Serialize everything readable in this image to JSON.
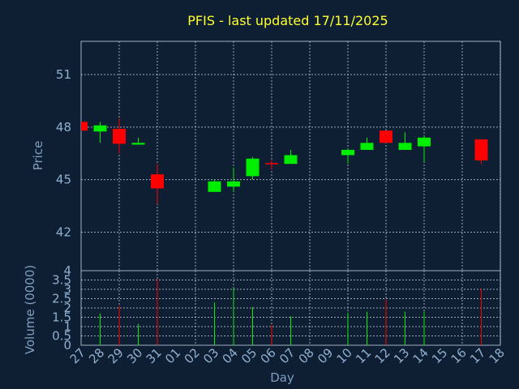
{
  "chart_data": [
    {
      "type": "candlestick",
      "title": "PFIS - last updated 17/11/2025",
      "xlabel": "",
      "ylabel": "Price",
      "ylim": [
        39.8,
        52.9
      ],
      "yticks": [
        42,
        45,
        48,
        51
      ],
      "grid": true,
      "colors": {
        "up": "#00ee00",
        "down": "#ff0000"
      },
      "x": [
        "27",
        "28",
        "29",
        "30",
        "31",
        "01",
        "02",
        "03",
        "04",
        "05",
        "06",
        "07",
        "08",
        "09",
        "10",
        "11",
        "12",
        "13",
        "14",
        "15",
        "16",
        "17",
        "18"
      ],
      "candles": [
        {
          "day": "27",
          "open": 48.3,
          "close": 47.8,
          "high": 48.3,
          "low": 47.8
        },
        {
          "day": "28",
          "open": 47.75,
          "close": 48.1,
          "high": 48.3,
          "low": 47.1
        },
        {
          "day": "29",
          "open": 47.9,
          "close": 47.05,
          "high": 48.5,
          "low": 46.5
        },
        {
          "day": "30",
          "open": 47.0,
          "close": 47.1,
          "high": 47.4,
          "low": 47.0
        },
        {
          "day": "31",
          "open": 45.3,
          "close": 44.5,
          "high": 45.9,
          "low": 43.6
        },
        {
          "day": "03",
          "open": 44.3,
          "close": 44.9,
          "high": 45.0,
          "low": 44.3
        },
        {
          "day": "04",
          "open": 44.6,
          "close": 44.9,
          "high": 45.7,
          "low": 44.3
        },
        {
          "day": "05",
          "open": 45.2,
          "close": 46.2,
          "high": 46.3,
          "low": 45.0
        },
        {
          "day": "06",
          "open": 45.95,
          "close": 45.9,
          "high": 46.1,
          "low": 45.6
        },
        {
          "day": "07",
          "open": 45.9,
          "close": 46.4,
          "high": 46.7,
          "low": 45.9
        },
        {
          "day": "10",
          "open": 46.4,
          "close": 46.7,
          "high": 46.8,
          "low": 45.9
        },
        {
          "day": "11",
          "open": 46.7,
          "close": 47.1,
          "high": 47.4,
          "low": 46.7
        },
        {
          "day": "12",
          "open": 47.8,
          "close": 47.1,
          "high": 47.8,
          "low": 47.1
        },
        {
          "day": "13",
          "open": 46.7,
          "close": 47.1,
          "high": 47.7,
          "low": 46.7
        },
        {
          "day": "14",
          "open": 46.9,
          "close": 47.4,
          "high": 47.5,
          "low": 46.0
        },
        {
          "day": "17",
          "open": 47.3,
          "close": 46.1,
          "high": 47.3,
          "low": 45.9
        }
      ]
    },
    {
      "type": "bar",
      "title": "",
      "xlabel": "Day",
      "ylabel": "Volume (0000)",
      "ylim": [
        0,
        4
      ],
      "yticks": [
        0,
        0.5,
        1,
        1.5,
        2,
        2.5,
        3,
        3.5,
        4
      ],
      "yticklabels": [
        "0",
        "0.5",
        "1",
        "1.5",
        "2",
        "2.5",
        "3",
        "3.5",
        "4"
      ],
      "grid": true,
      "x": [
        "27",
        "28",
        "29",
        "30",
        "31",
        "01",
        "02",
        "03",
        "04",
        "05",
        "06",
        "07",
        "08",
        "09",
        "10",
        "11",
        "12",
        "13",
        "14",
        "15",
        "16",
        "17",
        "18"
      ],
      "bars": [
        {
          "day": "28",
          "value": 1.7,
          "dir": "up"
        },
        {
          "day": "29",
          "value": 2.1,
          "dir": "down"
        },
        {
          "day": "30",
          "value": 1.15,
          "dir": "up"
        },
        {
          "day": "31",
          "value": 3.55,
          "dir": "down"
        },
        {
          "day": "03",
          "value": 2.3,
          "dir": "up"
        },
        {
          "day": "04",
          "value": 3.05,
          "dir": "up"
        },
        {
          "day": "05",
          "value": 2.05,
          "dir": "up"
        },
        {
          "day": "06",
          "value": 1.1,
          "dir": "down"
        },
        {
          "day": "07",
          "value": 1.55,
          "dir": "up"
        },
        {
          "day": "10",
          "value": 1.75,
          "dir": "up"
        },
        {
          "day": "11",
          "value": 1.8,
          "dir": "up"
        },
        {
          "day": "12",
          "value": 2.45,
          "dir": "down"
        },
        {
          "day": "13",
          "value": 1.8,
          "dir": "up"
        },
        {
          "day": "14",
          "value": 1.8,
          "dir": "up"
        },
        {
          "day": "17",
          "value": 3.05,
          "dir": "down"
        }
      ]
    }
  ]
}
